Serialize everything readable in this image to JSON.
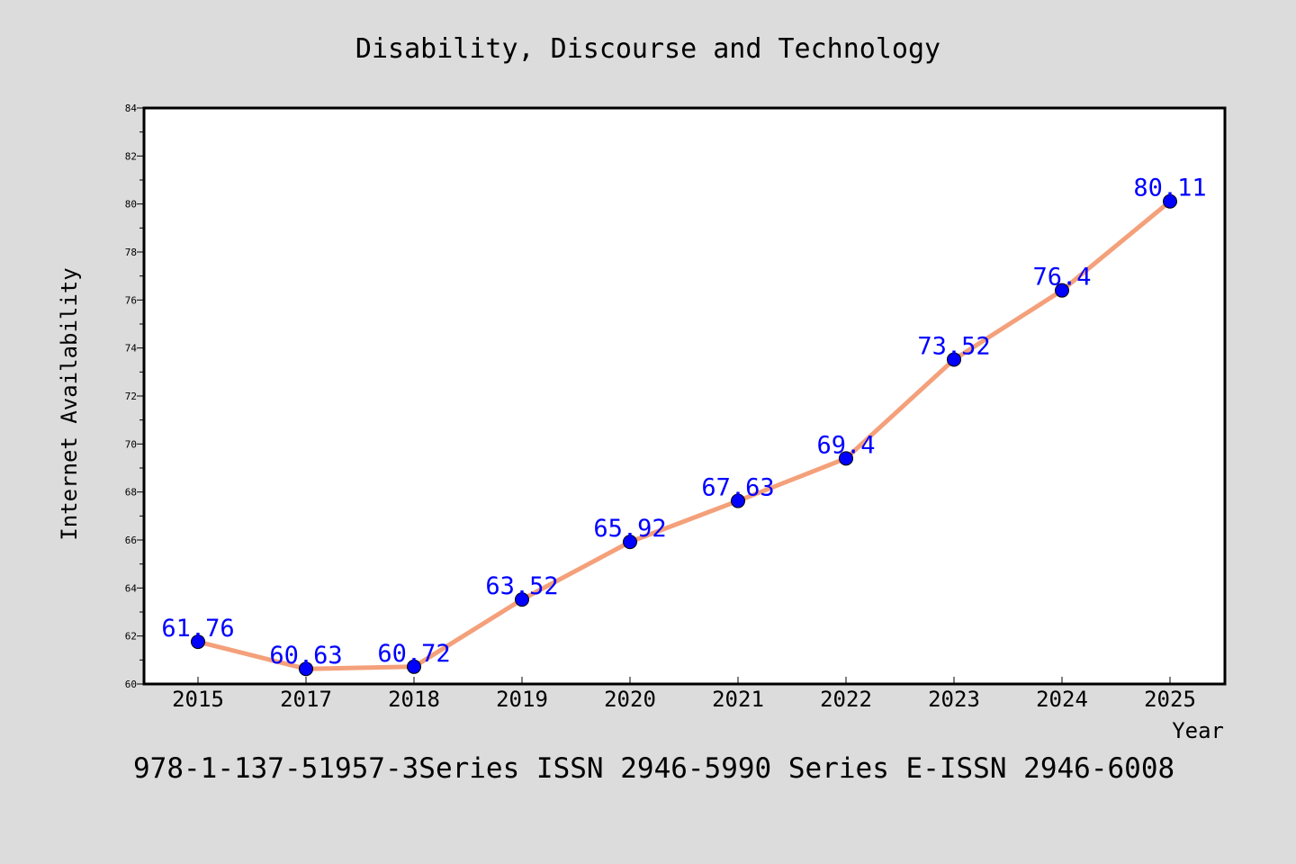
{
  "chart_data": {
    "type": "line",
    "title": "Disability, Discourse and Technology",
    "xlabel": "Year",
    "ylabel": "Internet Availability",
    "categories": [
      "2015",
      "2017",
      "2018",
      "2019",
      "2020",
      "2021",
      "2022",
      "2023",
      "2024",
      "2025"
    ],
    "series": [
      {
        "values": [
          61.76,
          60.63,
          60.72,
          63.52,
          65.92,
          67.63,
          69.4,
          73.52,
          76.4,
          80.11
        ],
        "data_labels": [
          "61.76",
          "60.63",
          "60.72",
          "63.52",
          "65.92",
          "67.63",
          "69.4",
          "73.52",
          "76.4",
          "80.11"
        ],
        "line_color": "#f4a07a",
        "marker_color": "#0000ff"
      }
    ],
    "ylim": [
      60,
      84
    ],
    "y_ticks": [
      "60",
      "62",
      "64",
      "66",
      "68",
      "70",
      "72",
      "74",
      "76",
      "78",
      "80",
      "82",
      "84"
    ],
    "grid": false,
    "label_color": "#0000ff",
    "footer": "978-1-137-51957-3Series ISSN 2946-5990 Series E-ISSN 2946-6008"
  }
}
